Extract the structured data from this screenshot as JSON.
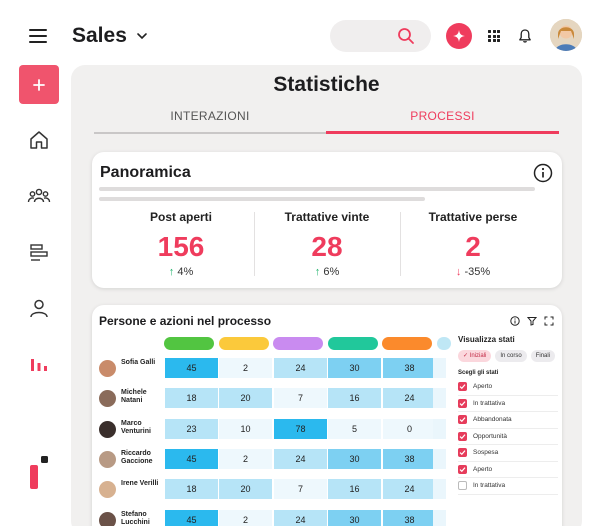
{
  "header": {
    "title": "Sales",
    "colors": {
      "accent": "#ef3c5d",
      "add_button": "#f0546d"
    }
  },
  "sidebar": {
    "items": [
      {
        "icon": "home-icon"
      },
      {
        "icon": "people-group-icon"
      },
      {
        "icon": "process-bars-icon"
      },
      {
        "icon": "user-icon"
      },
      {
        "icon": "stats-chart-icon",
        "active": true
      }
    ]
  },
  "main": {
    "title": "Statistiche",
    "tabs": [
      {
        "label": "INTERAZIONI",
        "active": false
      },
      {
        "label": "PROCESSI",
        "active": true
      }
    ],
    "overview": {
      "title": "Panoramica",
      "kpis": [
        {
          "label": "Post aperti",
          "value": "156",
          "delta": "4%",
          "direction": "up"
        },
        {
          "label": "Trattative vinte",
          "value": "28",
          "delta": "6%",
          "direction": "up"
        },
        {
          "label": "Trattative perse",
          "value": "2",
          "delta": "-35%",
          "direction": "down"
        }
      ]
    },
    "process": {
      "title": "Persone e azioni nel processo",
      "stage_colors": [
        "#52c541",
        "#fbc93b",
        "#c98bf0",
        "#21c89b",
        "#fb8a2c",
        "#bfe7f5"
      ],
      "people": [
        {
          "name": "Sofia Galli",
          "values": [
            "45",
            "2",
            "24",
            "30",
            "38"
          ]
        },
        {
          "name": "Michele Natani",
          "values": [
            "18",
            "20",
            "7",
            "16",
            "24"
          ]
        },
        {
          "name": "Marco Venturini",
          "values": [
            "23",
            "10",
            "78",
            "5",
            "0"
          ]
        },
        {
          "name": "Riccardo Gaccione",
          "values": [
            "45",
            "2",
            "24",
            "30",
            "38"
          ]
        },
        {
          "name": "Irene Verilli",
          "values": [
            "18",
            "20",
            "7",
            "16",
            "24"
          ]
        },
        {
          "name": "Stefano Lucchini",
          "values": [
            "45",
            "2",
            "24",
            "30",
            "38"
          ]
        }
      ],
      "filter": {
        "title": "Visualizza stati",
        "chips": [
          {
            "label": "Iniziali",
            "active": true
          },
          {
            "label": "In corso",
            "active": false
          },
          {
            "label": "Finali",
            "active": false
          }
        ],
        "subtitle": "Scegli gli stati",
        "states": [
          {
            "label": "Aperto",
            "checked": true
          },
          {
            "label": "In trattativa",
            "checked": true
          },
          {
            "label": "Abbandonata",
            "checked": true
          },
          {
            "label": "Opportunità",
            "checked": true
          },
          {
            "label": "Sospesa",
            "checked": true
          },
          {
            "label": "Aperto",
            "checked": true
          },
          {
            "label": "In trattativa",
            "checked": false
          }
        ]
      }
    }
  }
}
